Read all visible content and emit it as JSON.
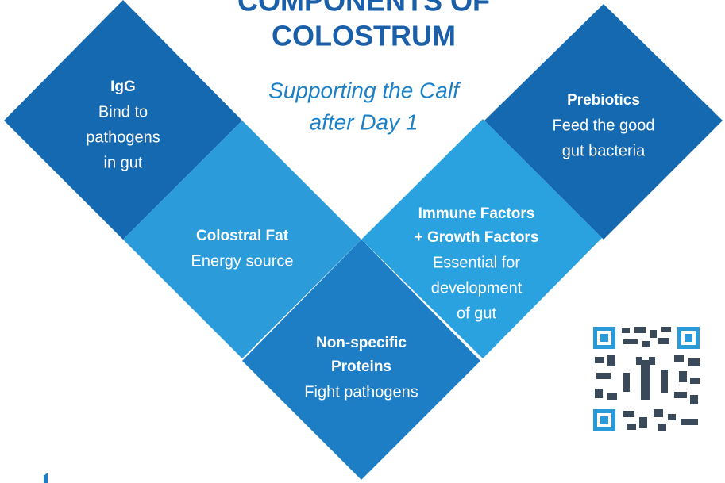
{
  "header": {
    "title_lines": [
      "COMPONENTS OF",
      "COLOSTRUM"
    ],
    "subtitle_lines": [
      "Supporting the Calf",
      "after Day 1"
    ]
  },
  "tiles": [
    {
      "heading": [
        "IgG"
      ],
      "body": [
        "Bind to",
        "pathogens",
        "in gut"
      ]
    },
    {
      "heading": [
        "Prebiotics"
      ],
      "body": [
        "Feed the good",
        "gut bacteria"
      ]
    },
    {
      "heading": [
        "Colostral Fat"
      ],
      "body": [
        "Energy source"
      ]
    },
    {
      "heading": [
        "Immune Factors",
        "+ Growth Factors"
      ],
      "body": [
        "Essential for",
        "development",
        "of gut"
      ]
    },
    {
      "heading": [
        "Non-specific",
        "Proteins"
      ],
      "body": [
        "Fight pathogens"
      ]
    }
  ]
}
